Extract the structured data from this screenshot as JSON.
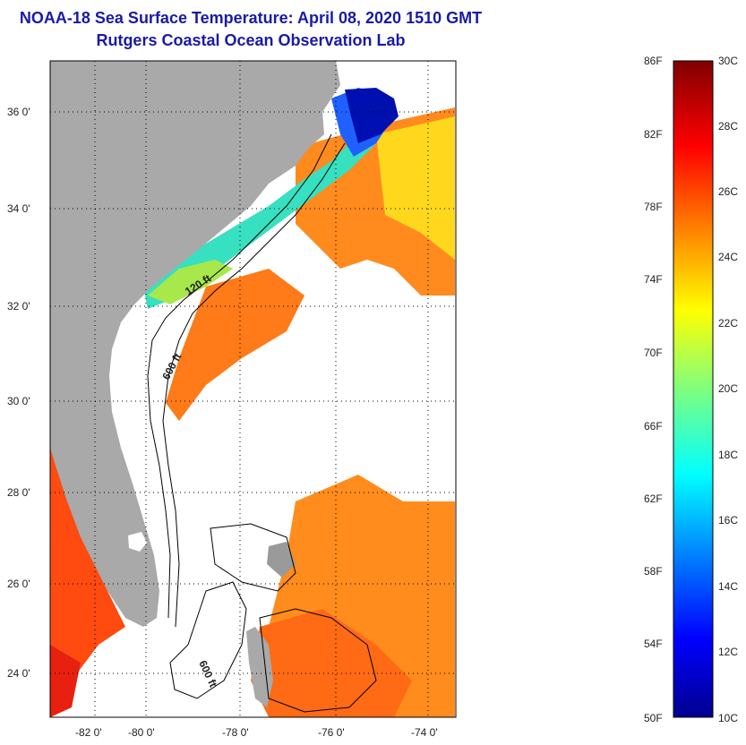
{
  "header": {
    "title": "NOAA-18 Sea Surface Temperature:  April 08, 2020 1510 GMT",
    "subtitle": "Rutgers Coastal Ocean Observation Lab"
  },
  "map": {
    "lat_labels": [
      "36 0'",
      "34 0'",
      "32 0'",
      "30 0'",
      "28 0'",
      "26 0'",
      "24 0'"
    ],
    "lon_labels": [
      "-82 0'",
      "-80 0'",
      "-78 0'",
      "-76 0'",
      "-74 0'"
    ],
    "contours": {
      "shelf": "120 ft",
      "slope": "600 ft",
      "bahamas": "600 ft"
    },
    "colors": {
      "land": "#a9a9a9",
      "cloud": "#ffffff"
    }
  },
  "colorbar": {
    "fahrenheit": [
      "86F",
      "82F",
      "78F",
      "74F",
      "70F",
      "66F",
      "62F",
      "58F",
      "54F",
      "50F"
    ],
    "celsius": [
      "30C",
      "28C",
      "26C",
      "24C",
      "22C",
      "20C",
      "18C",
      "16C",
      "14C",
      "12C",
      "10C"
    ]
  }
}
